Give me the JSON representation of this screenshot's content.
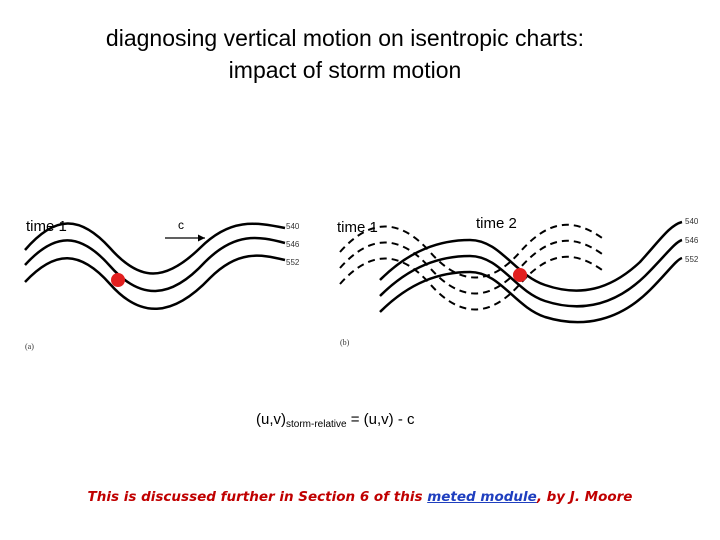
{
  "title": {
    "line1": "diagnosing vertical motion on isentropic charts:",
    "line2": "impact of storm motion"
  },
  "panel_a": {
    "time_label": "time 1",
    "arrow_label": "c",
    "contour_labels": [
      "540",
      "546",
      "552"
    ],
    "panel_letter": "(a)"
  },
  "panel_b": {
    "time1_label": "time 1",
    "time2_label": "time 2",
    "contour_labels": [
      "540",
      "546",
      "552"
    ],
    "panel_letter": "(b)"
  },
  "formula": {
    "lhs": "(u,v)",
    "subscript": "storm-relative",
    "rhs": " = (u,v) - c"
  },
  "footer": {
    "prefix": "This is discussed further in Section 6 of this ",
    "link_text": "meted module",
    "suffix": ", by J. Moore"
  },
  "colors": {
    "parcel_dot": "#e21f1f",
    "footer_text": "#c00000",
    "link": "#1f3fbf"
  }
}
